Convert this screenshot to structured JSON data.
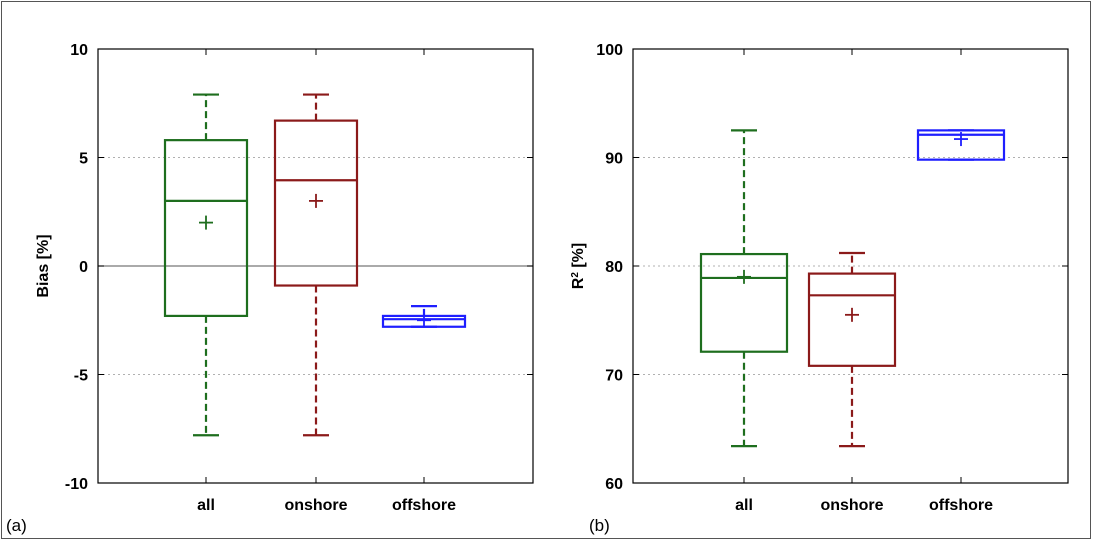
{
  "chart_data": [
    {
      "type": "box",
      "panel_label": "(a)",
      "title": "",
      "xlabel": "",
      "ylabel": "Bias [%]",
      "ylim": [
        -10,
        10
      ],
      "yticks": [
        -10,
        -5,
        0,
        5,
        10
      ],
      "ytick_labels": [
        "-10",
        "-5",
        "0",
        "5",
        "10"
      ],
      "grid": "horizontal dotted",
      "reference_line": 0,
      "categories": [
        "all",
        "onshore",
        "offshore"
      ],
      "series": [
        {
          "category": "all",
          "color": "#1e6e1e",
          "whisker_low": -7.8,
          "q1": -2.3,
          "median": 3.0,
          "q3": 5.8,
          "whisker_high": 7.9,
          "mean": 2.0
        },
        {
          "category": "onshore",
          "color": "#8b1a1a",
          "whisker_low": -7.8,
          "q1": -0.9,
          "median": 3.95,
          "q3": 6.7,
          "whisker_high": 7.9,
          "mean": 3.0
        },
        {
          "category": "offshore",
          "color": "#1f1fff",
          "whisker_low": -2.8,
          "q1": -2.8,
          "median": -2.45,
          "q3": -2.3,
          "whisker_high": -1.85,
          "mean": -2.5
        }
      ]
    },
    {
      "type": "box",
      "panel_label": "(b)",
      "title": "",
      "xlabel": "",
      "ylabel": "R",
      "ylabel_sup": "2",
      "ylabel_suffix": " [%]",
      "ylim": [
        60,
        100
      ],
      "yticks": [
        60,
        70,
        80,
        90,
        100
      ],
      "ytick_labels": [
        "60",
        "70",
        "80",
        "90",
        "100"
      ],
      "grid": "horizontal dotted",
      "categories": [
        "all",
        "onshore",
        "offshore"
      ],
      "series": [
        {
          "category": "all",
          "color": "#1e6e1e",
          "whisker_low": 63.4,
          "q1": 72.1,
          "median": 78.9,
          "q3": 81.1,
          "whisker_high": 92.5,
          "mean": 79.0
        },
        {
          "category": "onshore",
          "color": "#8b1a1a",
          "whisker_low": 63.4,
          "q1": 70.8,
          "median": 77.3,
          "q3": 79.3,
          "whisker_high": 81.2,
          "mean": 75.5
        },
        {
          "category": "offshore",
          "color": "#1f1fff",
          "whisker_low": 89.8,
          "q1": 89.8,
          "median": 92.1,
          "q3": 92.5,
          "whisker_high": 92.5,
          "mean": 91.7
        }
      ]
    }
  ]
}
